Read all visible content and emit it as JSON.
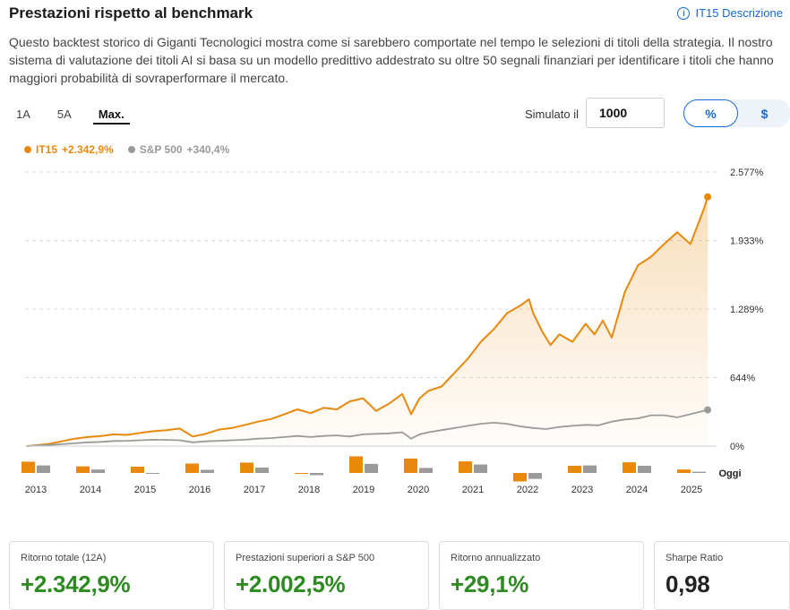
{
  "header": {
    "title": "Prestazioni rispetto al benchmark",
    "desc_link": "IT15 Descrizione"
  },
  "intro": "Questo backtest storico di Giganti Tecnologici mostra come si sarebbero comportate nel tempo le selezioni di titoli della strategia. Il nostro sistema di valutazione dei titoli AI si basa su un modello predittivo addestrato su oltre 50 segnali finanziari per identificare i titoli che hanno maggiori probabilità di sovraperformare il mercato.",
  "ranges": [
    {
      "label": "1A",
      "active": false
    },
    {
      "label": "5A",
      "active": false
    },
    {
      "label": "Max.",
      "active": true
    }
  ],
  "simulate": {
    "label": "Simulato il",
    "value": "1000"
  },
  "unit_toggle": [
    {
      "label": "%",
      "active": true
    },
    {
      "label": "$",
      "active": false
    }
  ],
  "legend": [
    {
      "name": "IT15",
      "value": "+2.342,9%",
      "color": "#e8890c"
    },
    {
      "name": "S&P 500",
      "value": "+340,4%",
      "color": "#9a9a9a"
    }
  ],
  "colors": {
    "accent": "#e8890c",
    "benchmark": "#9a9a9a",
    "positive": "#2e8b21",
    "link": "#1769d6"
  },
  "chart_data": {
    "type": "line",
    "y_ticks": [
      {
        "value": 0,
        "label": "0%"
      },
      {
        "value": 644,
        "label": "644%"
      },
      {
        "value": 1289,
        "label": "1.289%"
      },
      {
        "value": 1933,
        "label": "1.933%"
      },
      {
        "value": 2577,
        "label": "2.577%"
      }
    ],
    "ylim": [
      0,
      2577
    ],
    "xlim": [
      2012.8,
      2026.0
    ],
    "series": [
      {
        "name": "IT15",
        "color": "#e8890c",
        "points": [
          [
            2012.83,
            0
          ],
          [
            2013.0,
            8
          ],
          [
            2013.25,
            20
          ],
          [
            2013.5,
            45
          ],
          [
            2013.75,
            70
          ],
          [
            2014.0,
            85
          ],
          [
            2014.25,
            95
          ],
          [
            2014.5,
            110
          ],
          [
            2014.75,
            105
          ],
          [
            2015.0,
            125
          ],
          [
            2015.25,
            140
          ],
          [
            2015.5,
            150
          ],
          [
            2015.75,
            165
          ],
          [
            2016.0,
            90
          ],
          [
            2016.25,
            115
          ],
          [
            2016.5,
            155
          ],
          [
            2016.75,
            170
          ],
          [
            2017.0,
            200
          ],
          [
            2017.25,
            230
          ],
          [
            2017.5,
            255
          ],
          [
            2017.75,
            300
          ],
          [
            2018.0,
            345
          ],
          [
            2018.25,
            310
          ],
          [
            2018.5,
            360
          ],
          [
            2018.75,
            345
          ],
          [
            2019.0,
            420
          ],
          [
            2019.25,
            450
          ],
          [
            2019.42,
            370
          ],
          [
            2019.5,
            330
          ],
          [
            2019.75,
            400
          ],
          [
            2020.0,
            490
          ],
          [
            2020.17,
            300
          ],
          [
            2020.33,
            450
          ],
          [
            2020.5,
            520
          ],
          [
            2020.75,
            560
          ],
          [
            2021.0,
            690
          ],
          [
            2021.25,
            820
          ],
          [
            2021.5,
            980
          ],
          [
            2021.75,
            1100
          ],
          [
            2022.0,
            1250
          ],
          [
            2022.25,
            1320
          ],
          [
            2022.42,
            1380
          ],
          [
            2022.5,
            1250
          ],
          [
            2022.67,
            1080
          ],
          [
            2022.83,
            950
          ],
          [
            2023.0,
            1050
          ],
          [
            2023.25,
            980
          ],
          [
            2023.5,
            1150
          ],
          [
            2023.67,
            1050
          ],
          [
            2023.83,
            1180
          ],
          [
            2024.0,
            1020
          ],
          [
            2024.25,
            1450
          ],
          [
            2024.5,
            1700
          ],
          [
            2024.75,
            1780
          ],
          [
            2025.0,
            1900
          ],
          [
            2025.25,
            2010
          ],
          [
            2025.5,
            1900
          ],
          [
            2025.75,
            2220
          ],
          [
            2025.83,
            2342.9
          ]
        ]
      },
      {
        "name": "S&P 500",
        "color": "#9a9a9a",
        "points": [
          [
            2012.83,
            0
          ],
          [
            2013.0,
            5
          ],
          [
            2013.25,
            10
          ],
          [
            2013.5,
            18
          ],
          [
            2013.75,
            26
          ],
          [
            2014.0,
            35
          ],
          [
            2014.25,
            40
          ],
          [
            2014.5,
            48
          ],
          [
            2014.75,
            50
          ],
          [
            2015.0,
            55
          ],
          [
            2015.25,
            60
          ],
          [
            2015.5,
            58
          ],
          [
            2015.75,
            55
          ],
          [
            2016.0,
            35
          ],
          [
            2016.25,
            45
          ],
          [
            2016.5,
            50
          ],
          [
            2016.75,
            55
          ],
          [
            2017.0,
            60
          ],
          [
            2017.25,
            70
          ],
          [
            2017.5,
            75
          ],
          [
            2017.75,
            85
          ],
          [
            2018.0,
            95
          ],
          [
            2018.25,
            85
          ],
          [
            2018.5,
            95
          ],
          [
            2018.75,
            100
          ],
          [
            2019.0,
            90
          ],
          [
            2019.25,
            110
          ],
          [
            2019.5,
            115
          ],
          [
            2019.75,
            120
          ],
          [
            2020.0,
            130
          ],
          [
            2020.17,
            70
          ],
          [
            2020.33,
            110
          ],
          [
            2020.5,
            130
          ],
          [
            2020.75,
            150
          ],
          [
            2021.0,
            170
          ],
          [
            2021.25,
            190
          ],
          [
            2021.5,
            210
          ],
          [
            2021.75,
            220
          ],
          [
            2022.0,
            210
          ],
          [
            2022.25,
            185
          ],
          [
            2022.5,
            170
          ],
          [
            2022.75,
            160
          ],
          [
            2023.0,
            180
          ],
          [
            2023.25,
            190
          ],
          [
            2023.5,
            200
          ],
          [
            2023.75,
            195
          ],
          [
            2024.0,
            230
          ],
          [
            2024.25,
            250
          ],
          [
            2024.5,
            260
          ],
          [
            2024.75,
            290
          ],
          [
            2025.0,
            290
          ],
          [
            2025.25,
            270
          ],
          [
            2025.5,
            300
          ],
          [
            2025.75,
            330
          ],
          [
            2025.83,
            340.4
          ]
        ]
      }
    ],
    "annual": {
      "years": [
        "2013",
        "2014",
        "2015",
        "2016",
        "2017",
        "2018",
        "2019",
        "2020",
        "2021",
        "2022",
        "2023",
        "2024",
        "2025"
      ],
      "it15": [
        36,
        21,
        20,
        30,
        33,
        -2,
        53,
        46,
        37,
        -27,
        23,
        34,
        11
      ],
      "sp500": [
        24,
        11,
        -1,
        10,
        17,
        -7,
        29,
        16,
        27,
        -19,
        24,
        23,
        4
      ]
    },
    "today_label": "Oggi"
  },
  "stats": [
    {
      "label": "Ritorno totale (12A)",
      "value": "+2.342,9%",
      "positive": true
    },
    {
      "label": "Prestazioni superiori a S&P 500",
      "value": "+2.002,5%",
      "positive": true
    },
    {
      "label": "Ritorno annualizzato",
      "value": "+29,1%",
      "positive": true
    },
    {
      "label": "Sharpe Ratio",
      "value": "0,98",
      "positive": false
    }
  ]
}
